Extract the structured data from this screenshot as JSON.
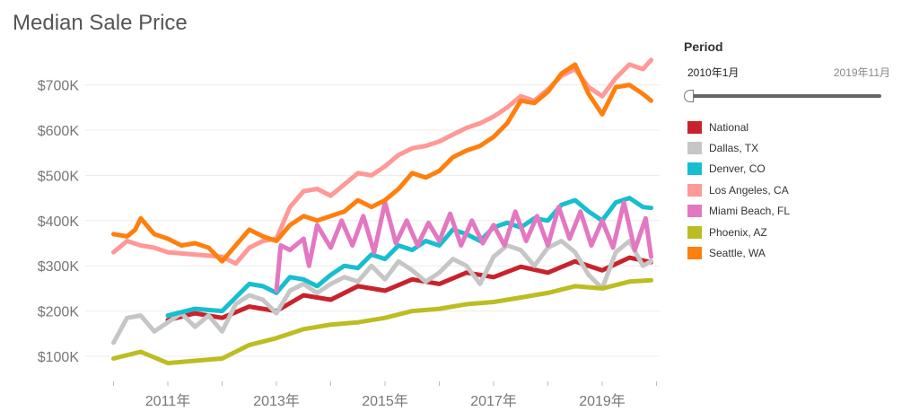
{
  "title": "Median Sale Price",
  "period": {
    "label": "Period",
    "start_label": "2010年1月",
    "end_label": "2019年11月"
  },
  "chart_data": {
    "type": "line",
    "title": "Median Sale Price",
    "xlabel": "",
    "ylabel": "",
    "x_ticks": [
      "2011年",
      "2013年",
      "2015年",
      "2017年",
      "2019年"
    ],
    "y_ticks": [
      "$100K",
      "$200K",
      "$300K",
      "$400K",
      "$500K",
      "$600K",
      "$700K"
    ],
    "ylim": [
      70000,
      790000
    ],
    "grid": "horizontal",
    "legend_position": "right",
    "series": [
      {
        "name": "National",
        "color": "#c8232c",
        "points": [
          [
            2011.0,
            180000
          ],
          [
            2011.5,
            195000
          ],
          [
            2012.0,
            185000
          ],
          [
            2012.5,
            210000
          ],
          [
            2013.0,
            200000
          ],
          [
            2013.5,
            235000
          ],
          [
            2014.0,
            225000
          ],
          [
            2014.5,
            255000
          ],
          [
            2015.0,
            245000
          ],
          [
            2015.5,
            270000
          ],
          [
            2016.0,
            260000
          ],
          [
            2016.5,
            285000
          ],
          [
            2017.0,
            275000
          ],
          [
            2017.5,
            298000
          ],
          [
            2018.0,
            285000
          ],
          [
            2018.5,
            310000
          ],
          [
            2019.0,
            290000
          ],
          [
            2019.5,
            318000
          ],
          [
            2019.9,
            308000
          ]
        ]
      },
      {
        "name": "Dallas, TX",
        "color": "#c6c6c6",
        "points": [
          [
            2010.0,
            130000
          ],
          [
            2010.25,
            185000
          ],
          [
            2010.5,
            190000
          ],
          [
            2010.75,
            155000
          ],
          [
            2011.0,
            175000
          ],
          [
            2011.25,
            195000
          ],
          [
            2011.5,
            165000
          ],
          [
            2011.75,
            190000
          ],
          [
            2012.0,
            155000
          ],
          [
            2012.25,
            215000
          ],
          [
            2012.5,
            235000
          ],
          [
            2012.75,
            225000
          ],
          [
            2013.0,
            195000
          ],
          [
            2013.25,
            245000
          ],
          [
            2013.5,
            260000
          ],
          [
            2013.75,
            240000
          ],
          [
            2014.0,
            260000
          ],
          [
            2014.25,
            275000
          ],
          [
            2014.5,
            265000
          ],
          [
            2014.75,
            300000
          ],
          [
            2015.0,
            270000
          ],
          [
            2015.25,
            310000
          ],
          [
            2015.5,
            290000
          ],
          [
            2015.75,
            265000
          ],
          [
            2016.0,
            285000
          ],
          [
            2016.25,
            315000
          ],
          [
            2016.5,
            300000
          ],
          [
            2016.75,
            260000
          ],
          [
            2017.0,
            320000
          ],
          [
            2017.25,
            345000
          ],
          [
            2017.5,
            335000
          ],
          [
            2017.75,
            300000
          ],
          [
            2018.0,
            340000
          ],
          [
            2018.25,
            355000
          ],
          [
            2018.5,
            330000
          ],
          [
            2018.75,
            280000
          ],
          [
            2019.0,
            250000
          ],
          [
            2019.25,
            330000
          ],
          [
            2019.5,
            355000
          ],
          [
            2019.75,
            300000
          ],
          [
            2019.9,
            310000
          ]
        ]
      },
      {
        "name": "Denver, CO",
        "color": "#17becf",
        "points": [
          [
            2011.0,
            190000
          ],
          [
            2011.5,
            205000
          ],
          [
            2012.0,
            200000
          ],
          [
            2012.25,
            230000
          ],
          [
            2012.5,
            260000
          ],
          [
            2012.75,
            255000
          ],
          [
            2013.0,
            240000
          ],
          [
            2013.25,
            275000
          ],
          [
            2013.5,
            270000
          ],
          [
            2013.75,
            255000
          ],
          [
            2014.0,
            280000
          ],
          [
            2014.25,
            300000
          ],
          [
            2014.5,
            295000
          ],
          [
            2014.75,
            325000
          ],
          [
            2015.0,
            315000
          ],
          [
            2015.25,
            345000
          ],
          [
            2015.5,
            335000
          ],
          [
            2015.75,
            355000
          ],
          [
            2016.0,
            345000
          ],
          [
            2016.25,
            380000
          ],
          [
            2016.5,
            370000
          ],
          [
            2016.75,
            355000
          ],
          [
            2017.0,
            385000
          ],
          [
            2017.25,
            395000
          ],
          [
            2017.5,
            385000
          ],
          [
            2017.75,
            405000
          ],
          [
            2018.0,
            400000
          ],
          [
            2018.25,
            435000
          ],
          [
            2018.5,
            445000
          ],
          [
            2018.75,
            420000
          ],
          [
            2019.0,
            400000
          ],
          [
            2019.25,
            440000
          ],
          [
            2019.5,
            450000
          ],
          [
            2019.75,
            430000
          ],
          [
            2019.9,
            428000
          ]
        ]
      },
      {
        "name": "Los Angeles, CA",
        "color": "#ff9896",
        "points": [
          [
            2010.0,
            330000
          ],
          [
            2010.25,
            355000
          ],
          [
            2010.5,
            345000
          ],
          [
            2010.75,
            340000
          ],
          [
            2011.0,
            330000
          ],
          [
            2011.5,
            325000
          ],
          [
            2012.0,
            320000
          ],
          [
            2012.25,
            305000
          ],
          [
            2012.5,
            340000
          ],
          [
            2012.75,
            355000
          ],
          [
            2013.0,
            360000
          ],
          [
            2013.25,
            430000
          ],
          [
            2013.5,
            465000
          ],
          [
            2013.75,
            470000
          ],
          [
            2014.0,
            455000
          ],
          [
            2014.25,
            480000
          ],
          [
            2014.5,
            505000
          ],
          [
            2014.75,
            500000
          ],
          [
            2015.0,
            520000
          ],
          [
            2015.25,
            545000
          ],
          [
            2015.5,
            560000
          ],
          [
            2015.75,
            565000
          ],
          [
            2016.0,
            575000
          ],
          [
            2016.25,
            590000
          ],
          [
            2016.5,
            605000
          ],
          [
            2016.75,
            615000
          ],
          [
            2017.0,
            630000
          ],
          [
            2017.25,
            650000
          ],
          [
            2017.5,
            675000
          ],
          [
            2017.75,
            665000
          ],
          [
            2018.0,
            690000
          ],
          [
            2018.25,
            720000
          ],
          [
            2018.5,
            735000
          ],
          [
            2018.75,
            695000
          ],
          [
            2019.0,
            675000
          ],
          [
            2019.25,
            715000
          ],
          [
            2019.5,
            745000
          ],
          [
            2019.75,
            735000
          ],
          [
            2019.9,
            755000
          ]
        ]
      },
      {
        "name": "Miami Beach, FL",
        "color": "#e377c2",
        "points": [
          [
            2013.0,
            245000
          ],
          [
            2013.08,
            345000
          ],
          [
            2013.25,
            335000
          ],
          [
            2013.5,
            360000
          ],
          [
            2013.6,
            300000
          ],
          [
            2013.75,
            390000
          ],
          [
            2014.0,
            340000
          ],
          [
            2014.2,
            400000
          ],
          [
            2014.4,
            345000
          ],
          [
            2014.6,
            410000
          ],
          [
            2014.8,
            330000
          ],
          [
            2015.0,
            440000
          ],
          [
            2015.2,
            350000
          ],
          [
            2015.4,
            400000
          ],
          [
            2015.6,
            345000
          ],
          [
            2015.8,
            395000
          ],
          [
            2016.0,
            355000
          ],
          [
            2016.2,
            415000
          ],
          [
            2016.4,
            345000
          ],
          [
            2016.6,
            400000
          ],
          [
            2016.8,
            350000
          ],
          [
            2017.0,
            390000
          ],
          [
            2017.2,
            345000
          ],
          [
            2017.4,
            420000
          ],
          [
            2017.6,
            355000
          ],
          [
            2017.8,
            410000
          ],
          [
            2018.0,
            345000
          ],
          [
            2018.2,
            430000
          ],
          [
            2018.4,
            360000
          ],
          [
            2018.6,
            420000
          ],
          [
            2018.8,
            345000
          ],
          [
            2019.0,
            400000
          ],
          [
            2019.2,
            340000
          ],
          [
            2019.4,
            440000
          ],
          [
            2019.6,
            335000
          ],
          [
            2019.8,
            405000
          ],
          [
            2019.9,
            320000
          ]
        ]
      },
      {
        "name": "Phoenix, AZ",
        "color": "#bcbd22",
        "points": [
          [
            2010.0,
            95000
          ],
          [
            2010.5,
            110000
          ],
          [
            2011.0,
            85000
          ],
          [
            2011.5,
            90000
          ],
          [
            2012.0,
            95000
          ],
          [
            2012.5,
            125000
          ],
          [
            2013.0,
            140000
          ],
          [
            2013.5,
            160000
          ],
          [
            2014.0,
            170000
          ],
          [
            2014.5,
            175000
          ],
          [
            2015.0,
            185000
          ],
          [
            2015.5,
            200000
          ],
          [
            2016.0,
            205000
          ],
          [
            2016.5,
            215000
          ],
          [
            2017.0,
            220000
          ],
          [
            2017.5,
            230000
          ],
          [
            2018.0,
            240000
          ],
          [
            2018.5,
            255000
          ],
          [
            2019.0,
            250000
          ],
          [
            2019.5,
            265000
          ],
          [
            2019.9,
            268000
          ]
        ]
      },
      {
        "name": "Seattle, WA",
        "color": "#ff7f0e",
        "points": [
          [
            2010.0,
            370000
          ],
          [
            2010.25,
            365000
          ],
          [
            2010.4,
            380000
          ],
          [
            2010.5,
            405000
          ],
          [
            2010.75,
            370000
          ],
          [
            2011.0,
            360000
          ],
          [
            2011.25,
            345000
          ],
          [
            2011.5,
            350000
          ],
          [
            2011.75,
            340000
          ],
          [
            2012.0,
            310000
          ],
          [
            2012.25,
            345000
          ],
          [
            2012.5,
            380000
          ],
          [
            2012.75,
            365000
          ],
          [
            2013.0,
            355000
          ],
          [
            2013.25,
            390000
          ],
          [
            2013.5,
            410000
          ],
          [
            2013.75,
            400000
          ],
          [
            2014.0,
            410000
          ],
          [
            2014.25,
            420000
          ],
          [
            2014.5,
            445000
          ],
          [
            2014.75,
            430000
          ],
          [
            2015.0,
            445000
          ],
          [
            2015.25,
            470000
          ],
          [
            2015.5,
            505000
          ],
          [
            2015.75,
            495000
          ],
          [
            2016.0,
            510000
          ],
          [
            2016.25,
            540000
          ],
          [
            2016.5,
            555000
          ],
          [
            2016.75,
            565000
          ],
          [
            2017.0,
            585000
          ],
          [
            2017.25,
            615000
          ],
          [
            2017.5,
            665000
          ],
          [
            2017.75,
            660000
          ],
          [
            2018.0,
            685000
          ],
          [
            2018.25,
            725000
          ],
          [
            2018.5,
            745000
          ],
          [
            2018.75,
            680000
          ],
          [
            2019.0,
            635000
          ],
          [
            2019.25,
            695000
          ],
          [
            2019.5,
            700000
          ],
          [
            2019.75,
            680000
          ],
          [
            2019.9,
            665000
          ]
        ]
      }
    ]
  }
}
